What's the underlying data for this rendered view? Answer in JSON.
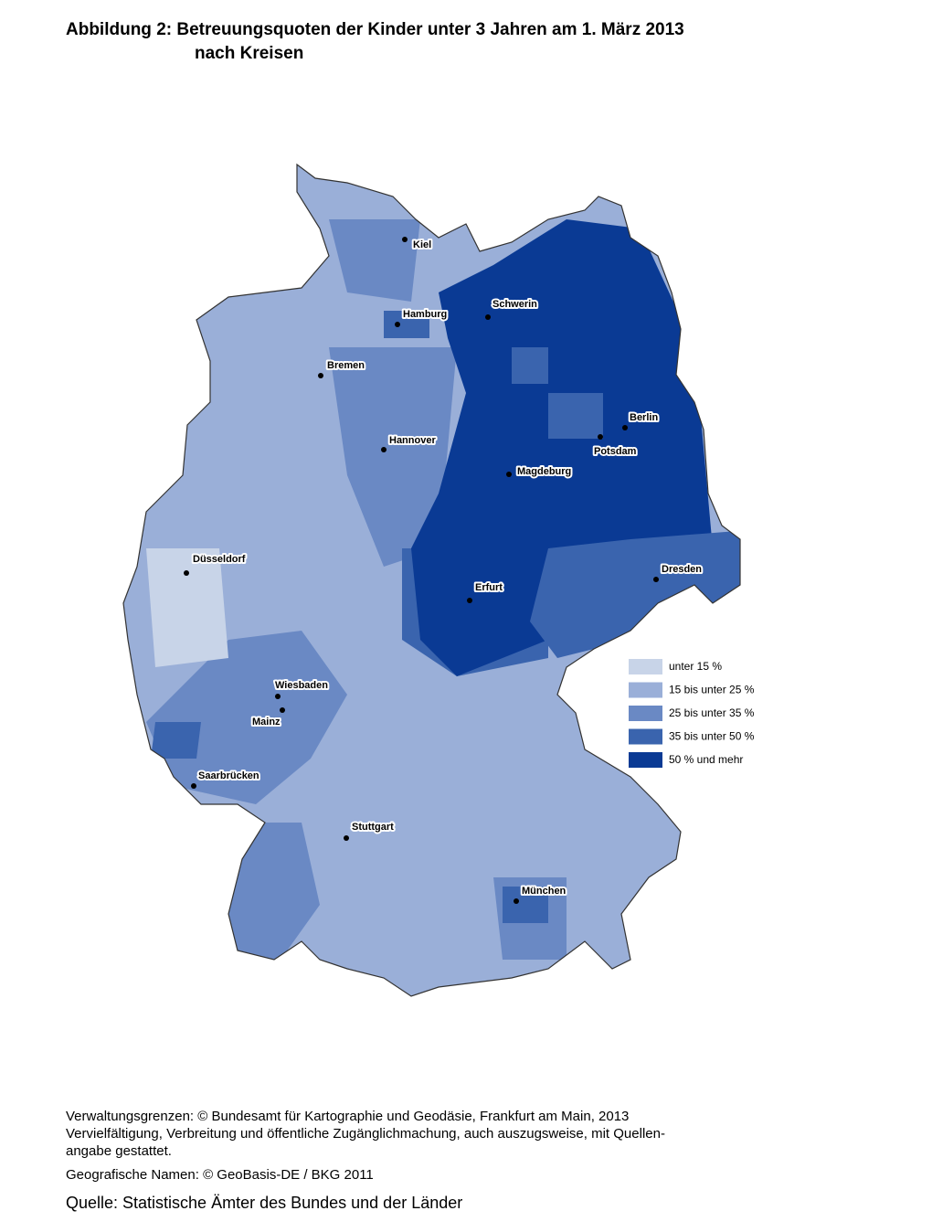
{
  "title": {
    "line1": "Abbildung 2: Betreuungsquoten der Kinder unter 3 Jahren am 1. März 2013",
    "line2": "nach Kreisen"
  },
  "cities": [
    "Kiel",
    "Hamburg",
    "Schwerin",
    "Bremen",
    "Hannover",
    "Berlin",
    "Potsdam",
    "Magdeburg",
    "Düsseldorf",
    "Dresden",
    "Erfurt",
    "Wiesbaden",
    "Mainz",
    "Saarbrücken",
    "Stuttgart",
    "München"
  ],
  "legend": [
    "unter 15 %",
    "15 bis unter 25 %",
    "25 bis unter 35 %",
    "35 bis unter 50 %",
    "50 % und mehr"
  ],
  "footer": {
    "lines": [
      "Verwaltungsgrenzen: © Bundesamt für Kartographie und Geodäsie, Frankfurt am Main, 2013",
      "Vervielfältigung, Verbreitung und öffentliche Zugänglichmachung, auch auszugsweise, mit Quellen-",
      "angabe gestattet.",
      "Geografische Namen: © GeoBasis-DE / BKG 2011"
    ],
    "source": "Quelle: Statistische Ämter des Bundes und der Länder"
  }
}
